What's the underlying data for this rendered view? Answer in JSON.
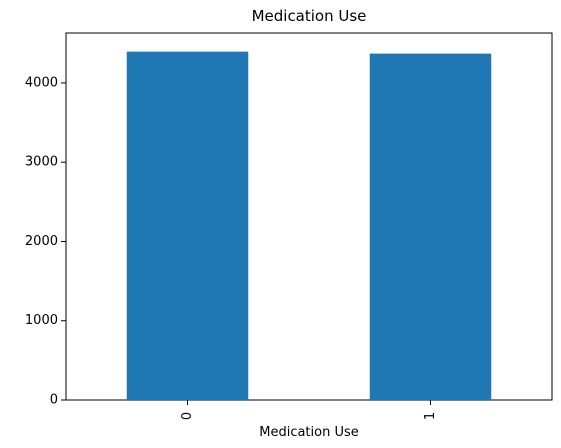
{
  "chart_data": {
    "type": "bar",
    "title": "Medication Use",
    "xlabel": "Medication Use",
    "ylabel": "",
    "categories": [
      "0",
      "1"
    ],
    "values": [
      4395,
      4370
    ],
    "ylim": [
      0,
      4630
    ],
    "yticks": [
      0,
      1000,
      2000,
      3000,
      4000
    ],
    "xtick_rotation": "vertical",
    "grid": false,
    "legend": "none",
    "bar_color": "#1f77b4"
  }
}
